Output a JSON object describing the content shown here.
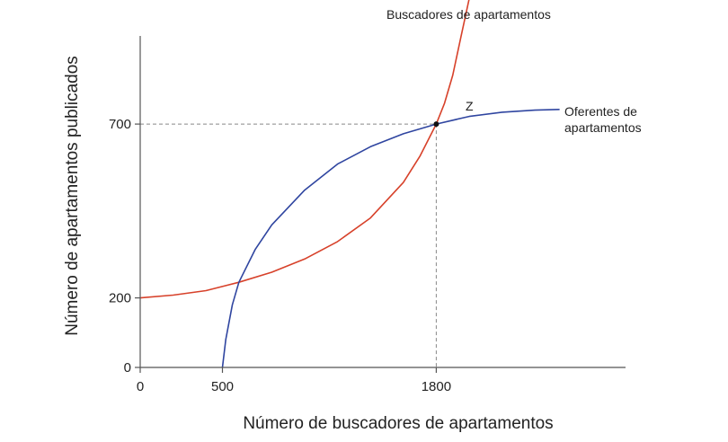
{
  "chart_data": {
    "type": "line",
    "title": "",
    "xlabel": "Número de buscadores de apartamentos",
    "ylabel": "Número de apartamentos publicados",
    "xlim": [
      0,
      2950
    ],
    "ylim": [
      0,
      1060
    ],
    "x_ticks": [
      {
        "value": 0,
        "label": "0"
      },
      {
        "value": 500,
        "label": "500"
      },
      {
        "value": 1800,
        "label": "1800"
      }
    ],
    "y_ticks": [
      {
        "value": 0,
        "label": "0"
      },
      {
        "value": 200,
        "label": "200"
      },
      {
        "value": 700,
        "label": "700"
      }
    ],
    "grid": false,
    "series": [
      {
        "name": "Buscadores de apartamentos",
        "color": "#d7412a",
        "x": [
          0,
          200,
          400,
          600,
          800,
          1000,
          1200,
          1400,
          1600,
          1700,
          1800,
          1850,
          1900,
          1950,
          2000
        ],
        "y": [
          200,
          208,
          221,
          245,
          274,
          312,
          362,
          430,
          532,
          607,
          700,
          760,
          840,
          950,
          1060
        ]
      },
      {
        "name": "Oferentes de apartamentos",
        "color": "#2f45a0",
        "x": [
          500,
          520,
          560,
          600,
          700,
          800,
          1000,
          1200,
          1400,
          1600,
          1800,
          2000,
          2200,
          2400,
          2550
        ],
        "y": [
          0,
          80,
          180,
          245,
          340,
          410,
          510,
          585,
          635,
          672,
          700,
          722,
          734,
          740,
          742
        ]
      }
    ],
    "annotations": [
      {
        "label": "Z",
        "x": 1800,
        "y": 700
      }
    ]
  }
}
